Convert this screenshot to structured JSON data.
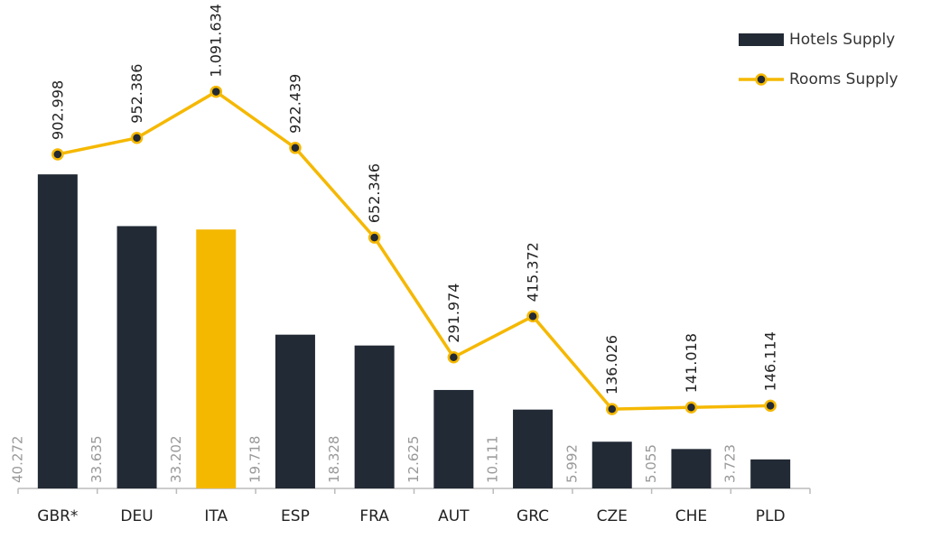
{
  "chart_data": {
    "type": "bar_line",
    "categories": [
      "GBR*",
      "DEU",
      "ITA",
      "ESP",
      "FRA",
      "AUT",
      "GRC",
      "CZE",
      "CHE",
      "PLD"
    ],
    "series": [
      {
        "name": "Hotels Supply",
        "type": "bar",
        "color": "#222a35",
        "colors": [
          "#222a35",
          "#222a35",
          "#f5b800",
          "#222a35",
          "#222a35",
          "#222a35",
          "#222a35",
          "#222a35",
          "#222a35",
          "#222a35"
        ],
        "values": [
          40272,
          33635,
          33202,
          19718,
          18328,
          12625,
          10111,
          5992,
          5055,
          3723
        ],
        "value_labels": [
          "40.272",
          "33.635",
          "33.202",
          "19.718",
          "18.328",
          "12.625",
          "10.111",
          "5.992",
          "5.055",
          "3.723"
        ]
      },
      {
        "name": "Rooms Supply",
        "type": "line",
        "axis": "y2",
        "color": "#f5b800",
        "values": [
          902998,
          952386,
          1091634,
          922439,
          652346,
          291974,
          415372,
          136026,
          141018,
          146114
        ],
        "value_labels": [
          "902.998",
          "952.386",
          "1.091.634",
          "922.439",
          "652.346",
          "291.974",
          "415.372",
          "136.026",
          "141.018",
          "146.114"
        ]
      }
    ],
    "ylim": [
      0,
      58000
    ],
    "y2lim": [
      -103000,
      1259000
    ],
    "legend": "top-right"
  }
}
